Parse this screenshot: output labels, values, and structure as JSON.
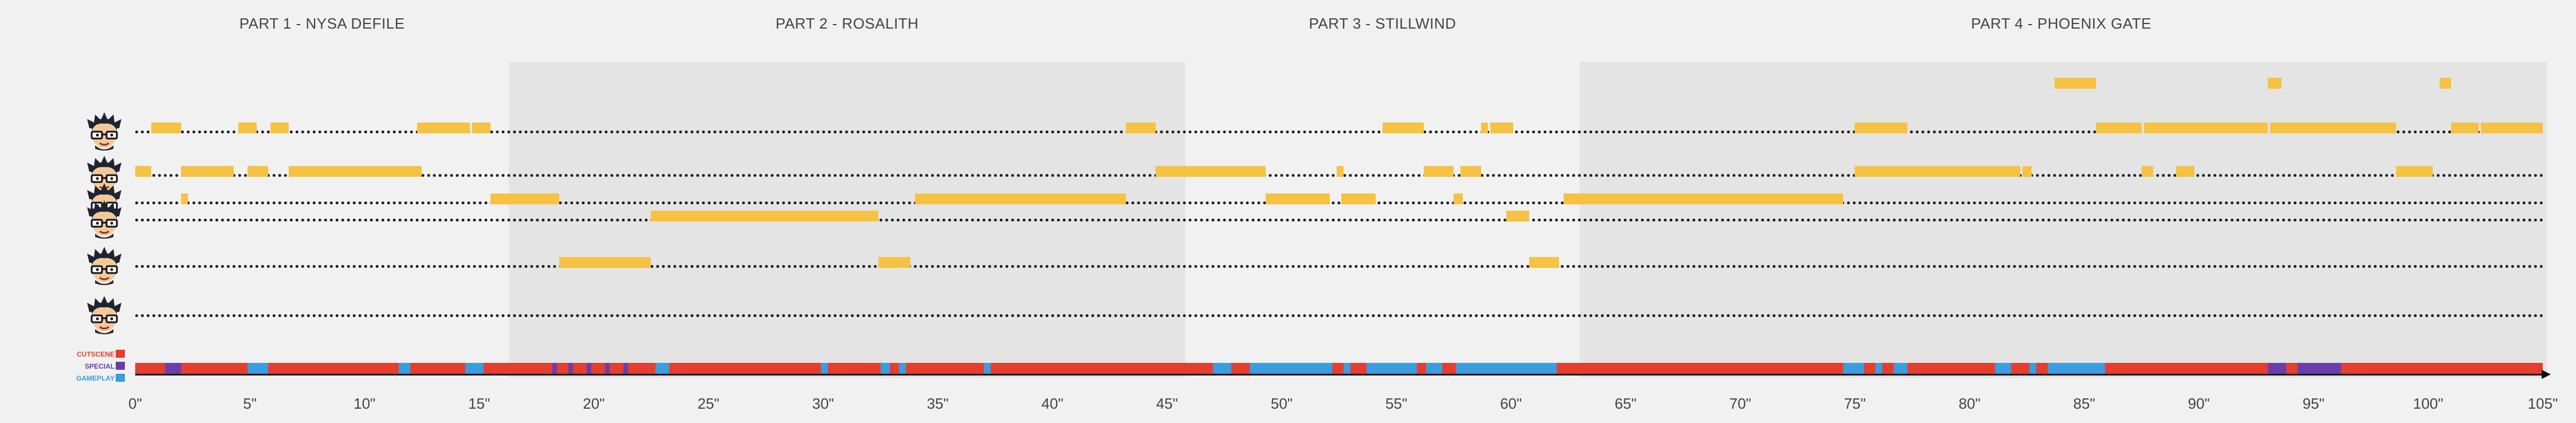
{
  "parts": [
    {
      "title": "PART 1 - NYSA DEFILE",
      "start": 0,
      "end": 16.3,
      "shade": "#f1f1f1"
    },
    {
      "title": "PART 2 - ROSALITH",
      "start": 16.3,
      "end": 45.8,
      "shade": "#e4e4e4"
    },
    {
      "title": "PART 3 - STILLWIND",
      "start": 45.8,
      "end": 63,
      "shade": "#f1f1f1"
    },
    {
      "title": "PART 4 - PHOENIX GATE",
      "start": 63,
      "end": 105,
      "shade": "#e4e4e4"
    }
  ],
  "tracks": [
    {
      "avatar": "avatar-icon",
      "bars": [
        [
          83.7,
          85.5
        ],
        [
          93.0,
          93.6
        ],
        [
          100.5,
          101.0
        ]
      ]
    },
    {
      "avatar": "avatar-icon",
      "bars": [
        [
          0.7,
          1.6
        ],
        [
          1.6,
          2.0
        ],
        [
          4.5,
          5.3
        ],
        [
          5.9,
          6.7
        ],
        [
          12.3,
          14.6
        ],
        [
          14.7,
          15.5
        ],
        [
          43.2,
          44.5
        ],
        [
          54.4,
          56.2
        ],
        [
          58.7,
          59.0
        ],
        [
          59.1,
          60.1
        ],
        [
          75.0,
          77.3
        ],
        [
          85.5,
          87.5
        ],
        [
          87.6,
          89.0
        ],
        [
          89.0,
          92.6
        ],
        [
          92.6,
          93.0
        ],
        [
          93.1,
          97.0
        ],
        [
          97.0,
          98.6
        ],
        [
          101.0,
          102.2
        ],
        [
          102.3,
          105.0
        ]
      ]
    },
    {
      "avatar": "avatar-icon",
      "bars": [
        [
          0,
          0.7
        ],
        [
          2.0,
          4.3
        ],
        [
          4.9,
          5.8
        ],
        [
          6.7,
          12.3
        ],
        [
          12.3,
          12.5
        ],
        [
          44.5,
          49.3
        ],
        [
          52.4,
          52.7
        ],
        [
          56.2,
          57.5
        ],
        [
          57.8,
          58.7
        ],
        [
          75.0,
          77.3
        ],
        [
          77.3,
          82.2
        ],
        [
          82.3,
          82.7
        ],
        [
          87.5,
          88.0
        ],
        [
          89.0,
          89.8
        ],
        [
          98.6,
          100.2
        ]
      ]
    },
    {
      "avatar": "avatar-icon",
      "bars": [
        [
          2.0,
          2.3
        ],
        [
          15.5,
          18.5
        ],
        [
          34.0,
          41.6
        ],
        [
          41.6,
          43.2
        ],
        [
          49.3,
          52.1
        ],
        [
          52.6,
          54.1
        ],
        [
          57.5,
          57.9
        ],
        [
          62.3,
          74.5
        ]
      ]
    },
    {
      "avatar": "avatar-icon",
      "bars": [
        [
          22.5,
          32.4
        ],
        [
          59.8,
          60.8
        ]
      ]
    },
    {
      "avatar": "avatar-icon",
      "bars": [
        [
          18.5,
          22.5
        ],
        [
          32.4,
          33.8
        ],
        [
          60.8,
          62.1
        ]
      ]
    },
    {
      "avatar": "avatar-icon",
      "bars": []
    }
  ],
  "legend": [
    {
      "label": "CUTSCENE",
      "color": "#e53e2e"
    },
    {
      "label": "SPECIAL",
      "color": "#6a3eaa"
    },
    {
      "label": "GAMEPLAY",
      "color": "#3a9de0"
    }
  ],
  "strip": {
    "base_color": "#e53e2e",
    "segments": [
      {
        "type": "SPECIAL",
        "start": 1.3,
        "end": 2.0
      },
      {
        "type": "GAMEPLAY",
        "start": 4.9,
        "end": 5.8
      },
      {
        "type": "GAMEPLAY",
        "start": 11.5,
        "end": 12.0
      },
      {
        "type": "GAMEPLAY",
        "start": 14.4,
        "end": 15.2
      },
      {
        "type": "SPECIAL",
        "start": 18.2,
        "end": 18.4
      },
      {
        "type": "SPECIAL",
        "start": 18.9,
        "end": 19.1
      },
      {
        "type": "SPECIAL",
        "start": 19.7,
        "end": 19.9
      },
      {
        "type": "SPECIAL",
        "start": 20.5,
        "end": 20.7
      },
      {
        "type": "SPECIAL",
        "start": 21.3,
        "end": 21.5
      },
      {
        "type": "GAMEPLAY",
        "start": 22.7,
        "end": 23.3
      },
      {
        "type": "GAMEPLAY",
        "start": 29.9,
        "end": 30.2
      },
      {
        "type": "GAMEPLAY",
        "start": 32.5,
        "end": 32.9
      },
      {
        "type": "GAMEPLAY",
        "start": 33.3,
        "end": 33.6
      },
      {
        "type": "GAMEPLAY",
        "start": 37.0,
        "end": 37.3
      },
      {
        "type": "GAMEPLAY",
        "start": 47.0,
        "end": 47.8
      },
      {
        "type": "GAMEPLAY",
        "start": 48.6,
        "end": 52.2
      },
      {
        "type": "GAMEPLAY",
        "start": 52.7,
        "end": 53.0
      },
      {
        "type": "GAMEPLAY",
        "start": 53.7,
        "end": 55.9
      },
      {
        "type": "GAMEPLAY",
        "start": 56.3,
        "end": 57.0
      },
      {
        "type": "GAMEPLAY",
        "start": 57.6,
        "end": 62.0
      },
      {
        "type": "GAMEPLAY",
        "start": 74.5,
        "end": 75.4
      },
      {
        "type": "GAMEPLAY",
        "start": 75.9,
        "end": 76.2
      },
      {
        "type": "GAMEPLAY",
        "start": 76.7,
        "end": 77.3
      },
      {
        "type": "GAMEPLAY",
        "start": 81.1,
        "end": 81.8
      },
      {
        "type": "GAMEPLAY",
        "start": 82.6,
        "end": 82.9
      },
      {
        "type": "GAMEPLAY",
        "start": 83.4,
        "end": 85.9
      },
      {
        "type": "SPECIAL",
        "start": 93.0,
        "end": 93.8
      },
      {
        "type": "SPECIAL",
        "start": 94.3,
        "end": 96.2
      }
    ]
  },
  "axis": {
    "min": 0,
    "max": 105,
    "ticks": [
      "0\"",
      "5\"",
      "10\"",
      "15\"",
      "20\"",
      "25\"",
      "30\"",
      "35\"",
      "40\"",
      "45\"",
      "50\"",
      "55\"",
      "60\"",
      "65\"",
      "70\"",
      "75\"",
      "80\"",
      "85\"",
      "90\"",
      "95\"",
      "100\"",
      "105\""
    ]
  },
  "colors": {
    "bar": "#f6c244",
    "cutscene": "#e53e2e",
    "special": "#6a3eaa",
    "gameplay": "#3a9de0"
  }
}
